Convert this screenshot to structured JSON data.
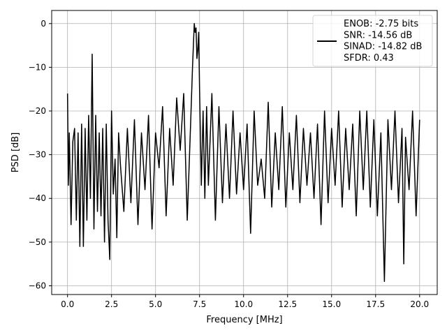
{
  "chart_data": {
    "type": "line",
    "title": "",
    "xlabel": "Frequency [MHz]",
    "ylabel": "PSD [dB]",
    "xlim": [
      -0.9,
      21.0
    ],
    "ylim": [
      -62.0,
      3.0
    ],
    "xticks": [
      0.0,
      2.5,
      5.0,
      7.5,
      10.0,
      12.5,
      15.0,
      17.5,
      20.0
    ],
    "xtick_labels": [
      "0.0",
      "2.5",
      "5.0",
      "7.5",
      "10.0",
      "12.5",
      "15.0",
      "17.5",
      "20.0"
    ],
    "yticks": [
      0,
      -10,
      -20,
      -30,
      -40,
      -50,
      -60
    ],
    "ytick_labels": [
      "0",
      "−10",
      "−20",
      "−30",
      "−40",
      "−50",
      "−60"
    ],
    "grid": true,
    "line_color": "#000000",
    "legend": {
      "position": "top-right",
      "entries": [
        "ENOB: -2.75 bits",
        "SNR: -14.56 dB",
        "SINAD: -14.82 dB",
        "SFDR: 0.43"
      ]
    },
    "series": [
      {
        "x": [
          0.0,
          0.05,
          0.1,
          0.2,
          0.3,
          0.4,
          0.5,
          0.6,
          0.7,
          0.8,
          0.9,
          1.0,
          1.1,
          1.2,
          1.3,
          1.4,
          1.5,
          1.6,
          1.7,
          1.8,
          1.9,
          2.0,
          2.1,
          2.2,
          2.3,
          2.4,
          2.5,
          2.6,
          2.7,
          2.8,
          2.9,
          3.0,
          3.2,
          3.4,
          3.6,
          3.8,
          4.0,
          4.2,
          4.4,
          4.6,
          4.8,
          5.0,
          5.2,
          5.4,
          5.6,
          5.8,
          6.0,
          6.2,
          6.4,
          6.6,
          6.8,
          7.0,
          7.1,
          7.2,
          7.25,
          7.3,
          7.35,
          7.4,
          7.45,
          7.5,
          7.6,
          7.7,
          7.8,
          7.9,
          8.0,
          8.2,
          8.4,
          8.6,
          8.8,
          9.0,
          9.2,
          9.4,
          9.6,
          9.8,
          10.0,
          10.2,
          10.4,
          10.6,
          10.8,
          11.0,
          11.2,
          11.4,
          11.6,
          11.8,
          12.0,
          12.2,
          12.4,
          12.6,
          12.8,
          13.0,
          13.2,
          13.4,
          13.6,
          13.8,
          14.0,
          14.2,
          14.4,
          14.6,
          14.8,
          15.0,
          15.2,
          15.4,
          15.6,
          15.8,
          16.0,
          16.2,
          16.4,
          16.6,
          16.8,
          17.0,
          17.2,
          17.4,
          17.6,
          17.8,
          17.9,
          18.0,
          18.2,
          18.4,
          18.6,
          18.8,
          19.0,
          19.1,
          19.2,
          19.4,
          19.6,
          19.8,
          20.0
        ],
        "y": [
          -16,
          -37,
          -25,
          -46,
          -27,
          -24,
          -45,
          -25,
          -51,
          -23,
          -51,
          -24,
          -45,
          -21,
          -40,
          -7,
          -47,
          -21,
          -43,
          -25,
          -44,
          -24,
          -50,
          -23,
          -45,
          -54,
          -20,
          -39,
          -31,
          -49,
          -25,
          -32,
          -43,
          -24,
          -41,
          -22,
          -46,
          -25,
          -38,
          -21,
          -47,
          -25,
          -33,
          -19,
          -44,
          -24,
          -37,
          -17,
          -29,
          -16,
          -45,
          -22,
          -10,
          0,
          -2,
          -1,
          -8,
          -6,
          -2,
          -15,
          -37,
          -20,
          -40,
          -19,
          -37,
          -16,
          -45,
          -19,
          -41,
          -23,
          -40,
          -20,
          -39,
          -25,
          -38,
          -23,
          -48,
          -20,
          -37,
          -31,
          -40,
          -18,
          -42,
          -25,
          -38,
          -19,
          -42,
          -25,
          -38,
          -21,
          -41,
          -24,
          -37,
          -25,
          -40,
          -23,
          -46,
          -20,
          -41,
          -24,
          -37,
          -20,
          -42,
          -24,
          -38,
          -23,
          -44,
          -20,
          -38,
          -20,
          -42,
          -22,
          -44,
          -25,
          -42,
          -59,
          -22,
          -38,
          -20,
          -41,
          -24,
          -55,
          -26,
          -38,
          -20,
          -44,
          -22
        ]
      }
    ]
  }
}
